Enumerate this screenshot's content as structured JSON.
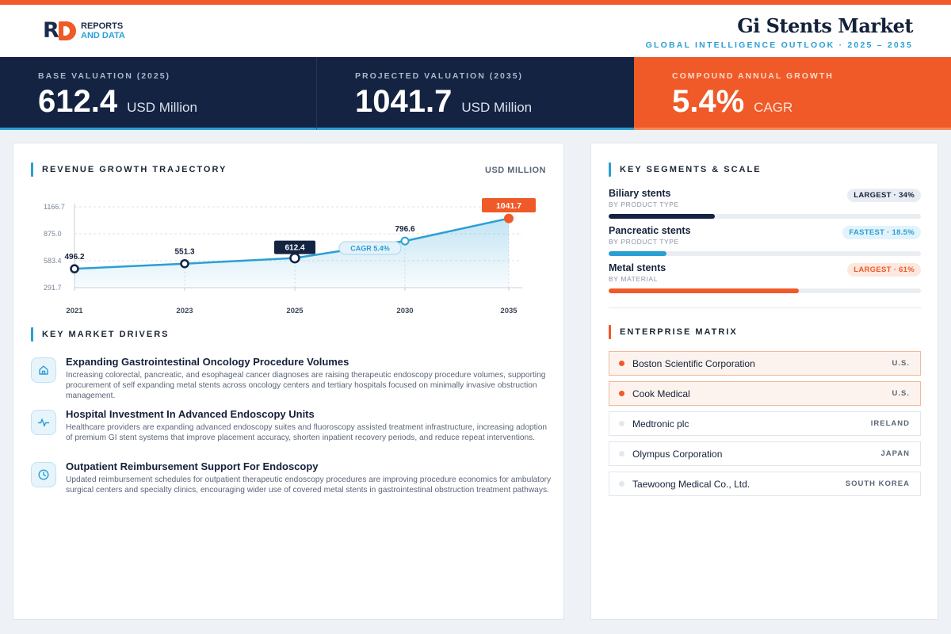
{
  "header": {
    "logo": {
      "line1": "REPORTS",
      "line2": "AND DATA"
    },
    "title": "Gi Stents Market",
    "subtitle": "GLOBAL INTELLIGENCE OUTLOOK  ·  2025 – 2035"
  },
  "kpis": [
    {
      "label": "BASE VALUATION (2025)",
      "value": "612.4",
      "unit": "USD Million"
    },
    {
      "label": "PROJECTED VALUATION (2035)",
      "value": "1041.7",
      "unit": "USD Million"
    },
    {
      "label": "COMPOUND ANNUAL GROWTH",
      "value": "5.4%",
      "unit": "CAGR"
    }
  ],
  "revenue": {
    "title": "REVENUE GROWTH TRAJECTORY",
    "unit": "USD MILLION"
  },
  "chart_data": {
    "type": "area",
    "x": [
      "2021",
      "2023",
      "2025",
      "2030",
      "2035"
    ],
    "values": [
      496.2,
      551.3,
      612.4,
      796.6,
      1041.7
    ],
    "data_labels": [
      "496.2",
      "551.3",
      "612.4",
      "796.6",
      "1041.7"
    ],
    "y_ticks": [
      "291.7",
      "583.4",
      "875.0",
      "1166.7"
    ],
    "y_tick_values": [
      291.7,
      583.4,
      875.0,
      1166.7
    ],
    "ylim": [
      291.7,
      1166.7
    ],
    "annotation": "CAGR 5.4%",
    "highlight_index": 2,
    "end_index": 4,
    "grid": true,
    "colors": {
      "line": "#2a9fd4",
      "navy": "#132341",
      "accent": "#ef5a28"
    }
  },
  "drivers": {
    "title": "KEY MARKET DRIVERS",
    "items": [
      {
        "icon": "home-icon",
        "title": "Expanding Gastrointestinal Oncology Procedure Volumes",
        "desc": "Increasing colorectal, pancreatic, and esophageal cancer diagnoses are raising therapeutic endoscopy procedure volumes, supporting procurement of self expanding metal stents across oncology centers and tertiary hospitals focused on minimally invasive obstruction management."
      },
      {
        "icon": "pulse-icon",
        "title": "Hospital Investment In Advanced Endoscopy Units",
        "desc": "Healthcare providers are expanding advanced endoscopy suites and fluoroscopy assisted treatment infrastructure, increasing adoption of premium GI stent systems that improve placement accuracy, shorten inpatient recovery periods, and reduce repeat interventions."
      },
      {
        "icon": "clock-icon",
        "title": "Outpatient Reimbursement Support For Endoscopy",
        "desc": "Updated reimbursement schedules for outpatient therapeutic endoscopy procedures are improving procedure economics for ambulatory surgical centers and specialty clinics, encouraging wider use of covered metal stents in gastrointestinal obstruction treatment pathways."
      }
    ]
  },
  "segments": {
    "title": "KEY SEGMENTS & SCALE",
    "items": [
      {
        "name": "Biliary stents",
        "sub": "BY PRODUCT TYPE",
        "badge": "LARGEST · 34%",
        "share": 0.34,
        "color": "#132341"
      },
      {
        "name": "Pancreatic stents",
        "sub": "BY PRODUCT TYPE",
        "badge": "FASTEST · 18.5%",
        "share": 0.185,
        "color": "#2a9fd4"
      },
      {
        "name": "Metal stents",
        "sub": "BY MATERIAL",
        "badge": "LARGEST · 61%",
        "share": 0.61,
        "color": "#ef5a28"
      }
    ]
  },
  "matrix": {
    "title": "ENTERPRISE MATRIX",
    "companies": [
      {
        "name": "Boston Scientific Corporation",
        "country": "U.S."
      },
      {
        "name": "Cook Medical",
        "country": "U.S."
      },
      {
        "name": "Medtronic plc",
        "country": "IRELAND"
      },
      {
        "name": "Olympus Corporation",
        "country": "JAPAN"
      },
      {
        "name": "Taewoong Medical Co., Ltd.",
        "country": "SOUTH KOREA"
      }
    ]
  }
}
